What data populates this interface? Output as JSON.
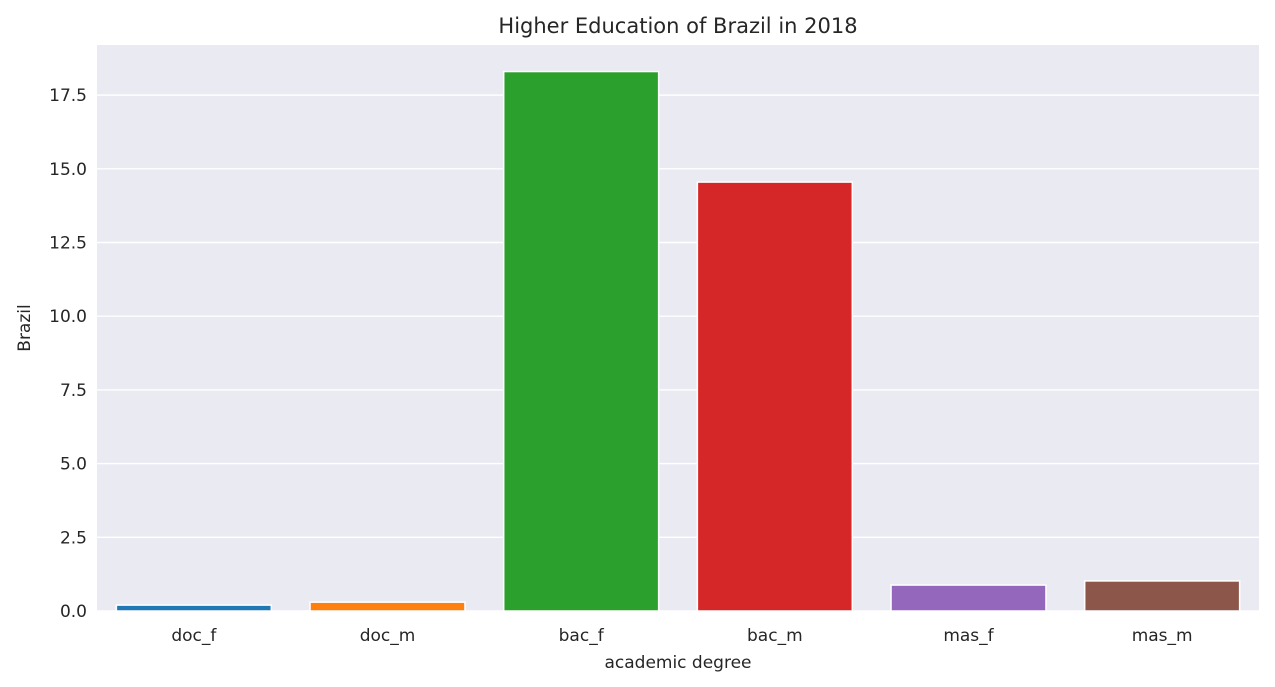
{
  "chart_data": {
    "type": "bar",
    "title": "Higher Education of Brazil in 2018",
    "xlabel": "academic degree",
    "ylabel": "Brazil",
    "categories": [
      "doc_f",
      "doc_m",
      "bac_f",
      "bac_m",
      "mas_f",
      "mas_m"
    ],
    "values": [
      0.2,
      0.3,
      18.3,
      14.55,
      0.88,
      1.02
    ],
    "colors": [
      "#1f77b4",
      "#ff7f0e",
      "#2ca02c",
      "#d62728",
      "#9467bd",
      "#8c564b"
    ],
    "ylim": [
      0,
      19.2
    ],
    "yticks": [
      "0.0",
      "2.5",
      "5.0",
      "7.5",
      "10.0",
      "12.5",
      "15.0",
      "17.5"
    ],
    "grid": true,
    "background": "#eaeaf2"
  }
}
